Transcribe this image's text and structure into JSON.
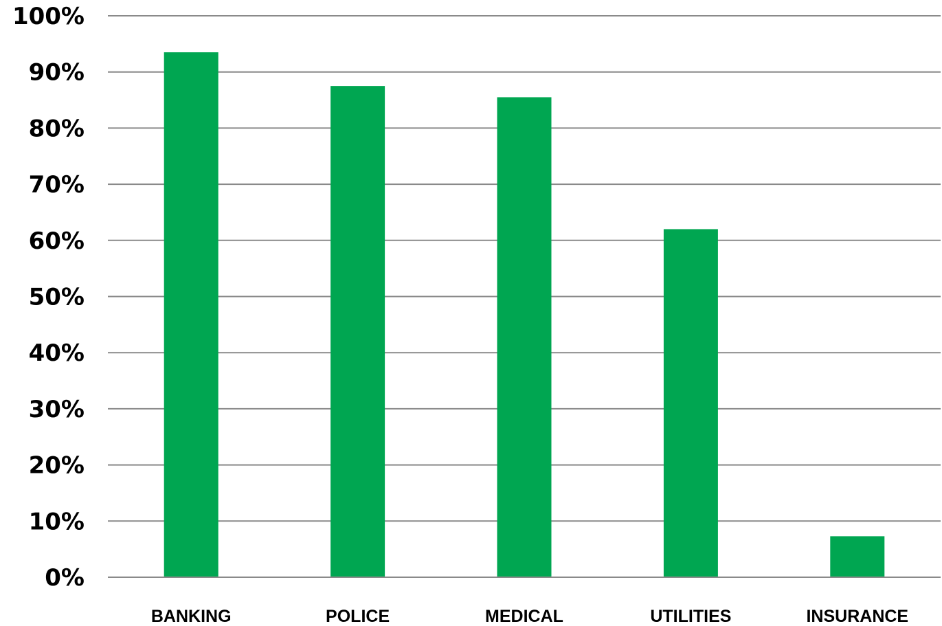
{
  "chart_data": {
    "type": "bar",
    "categories": [
      "BANKING",
      "POLICE",
      "MEDICAL",
      "UTILITIES",
      "INSURANCE"
    ],
    "values": [
      93.5,
      87.5,
      85.5,
      62,
      7.3
    ],
    "y_tick_labels": [
      "0%",
      "10%",
      "20%",
      "30%",
      "40%",
      "50%",
      "60%",
      "70%",
      "80%",
      "90%",
      "100%"
    ],
    "y_tick_values": [
      0,
      10,
      20,
      30,
      40,
      50,
      60,
      70,
      80,
      90,
      100
    ],
    "ylim": [
      0,
      100
    ],
    "title": "",
    "xlabel": "",
    "ylabel": "",
    "grid": true,
    "legend": "none",
    "bar_color": "#00a651",
    "grid_color": "#8a8a8a",
    "text_color": "#000000"
  }
}
